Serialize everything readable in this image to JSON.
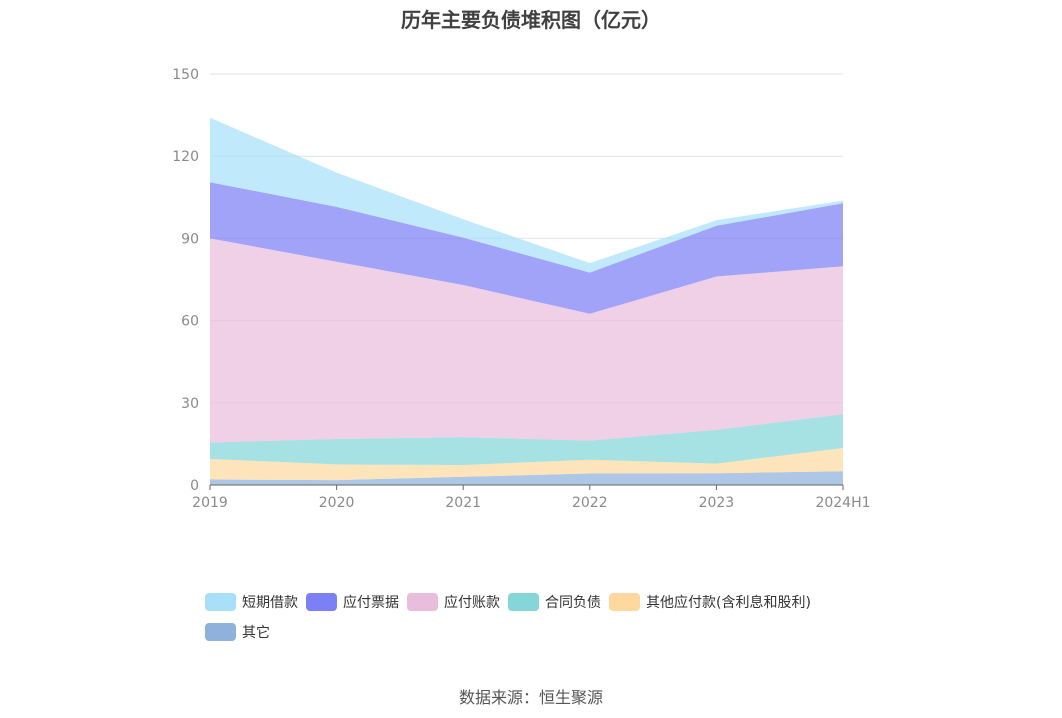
{
  "chart_data": {
    "type": "area",
    "stacked": true,
    "title": "历年主要负债堆积图（亿元）",
    "categories": [
      "2019",
      "2020",
      "2021",
      "2022",
      "2023",
      "2024H1"
    ],
    "ylim": [
      0,
      150
    ],
    "yticks": [
      0,
      30,
      60,
      90,
      120,
      150
    ],
    "grid": true,
    "legend_position": "bottom-left",
    "series": [
      {
        "name": "其它",
        "color": "#8fb1dc",
        "values": [
          2,
          1.8,
          3,
          4.2,
          4.3,
          5
        ]
      },
      {
        "name": "其他应付款(含利息和股利)",
        "color": "#fdd9a0",
        "values": [
          7.5,
          5.7,
          4.3,
          5,
          3.5,
          8.5
        ]
      },
      {
        "name": "合同负债",
        "color": "#84d6d8",
        "values": [
          6,
          9.3,
          10.2,
          7,
          12.3,
          12.3
        ]
      },
      {
        "name": "应付账款",
        "color": "#e9bedd",
        "values": [
          74.5,
          64.7,
          55.5,
          46.3,
          56,
          54
        ]
      },
      {
        "name": "应付票据",
        "color": "#7b80f5",
        "values": [
          20.5,
          20,
          17.3,
          15,
          18.5,
          23
        ]
      },
      {
        "name": "短期借款",
        "color": "#a8e0fa",
        "values": [
          23.5,
          12.5,
          6.7,
          3.5,
          2,
          1
        ]
      }
    ]
  },
  "legend_order": [
    {
      "name": "短期借款",
      "color": "#a8e0fa"
    },
    {
      "name": "应付票据",
      "color": "#7b80f5"
    },
    {
      "name": "应付账款",
      "color": "#e9bedd"
    },
    {
      "name": "合同负债",
      "color": "#84d6d8"
    },
    {
      "name": "其他应付款(含利息和股利)",
      "color": "#fdd9a0"
    },
    {
      "name": "其它",
      "color": "#8fb1dc"
    }
  ],
  "source": "数据来源：恒生聚源"
}
